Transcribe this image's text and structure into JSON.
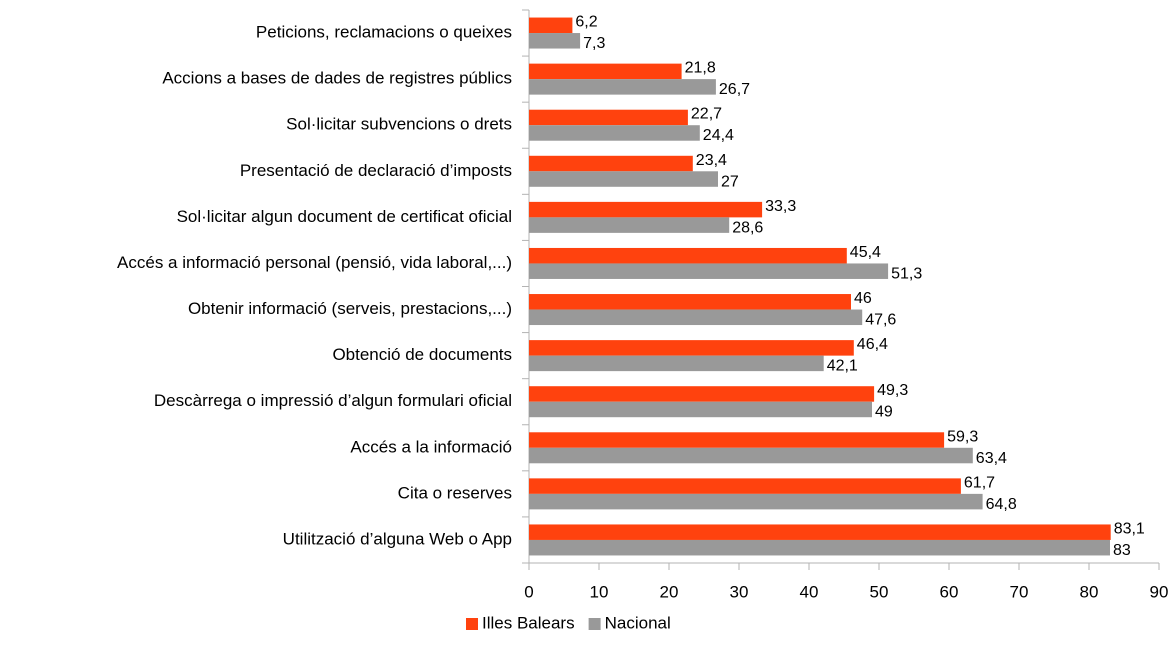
{
  "chart_data": {
    "type": "bar",
    "orientation": "horizontal",
    "categories": [
      "Peticions, reclamacions o queixes",
      "Accions a bases de dades de registres públics",
      "Sol·licitar subvencions o drets",
      "Presentació de declaració d’imposts",
      "Sol·licitar algun document de certificat oficial",
      "Accés a informació personal (pensió, vida laboral,...)",
      "Obtenir informació (serveis, prestacions,...)",
      "Obtenció de documents",
      "Descàrrega o impressió d’algun formulari oficial",
      "Accés a la informació",
      "Cita o reserves",
      "Utilització d’alguna Web o App"
    ],
    "series": [
      {
        "name": "Illes Balears",
        "color": "#ff420e",
        "values": [
          6.2,
          21.8,
          22.7,
          23.4,
          33.3,
          45.4,
          46,
          46.4,
          49.3,
          59.3,
          61.7,
          83.1
        ],
        "value_labels": [
          "6,2",
          "21,8",
          "22,7",
          "23,4",
          "33,3",
          "45,4",
          "46",
          "46,4",
          "49,3",
          "59,3",
          "61,7",
          "83,1"
        ]
      },
      {
        "name": "Nacional",
        "color": "#999999",
        "values": [
          7.3,
          26.7,
          24.4,
          27,
          28.6,
          51.3,
          47.6,
          42.1,
          49,
          63.4,
          64.8,
          83
        ],
        "value_labels": [
          "7,3",
          "26,7",
          "24,4",
          "27",
          "28,6",
          "51,3",
          "47,6",
          "42,1",
          "49",
          "63,4",
          "64,8",
          "83"
        ]
      }
    ],
    "xlim": [
      0,
      90
    ],
    "xticks": [
      0,
      10,
      20,
      30,
      40,
      50,
      60,
      70,
      80,
      90
    ],
    "legend": "bottom"
  }
}
